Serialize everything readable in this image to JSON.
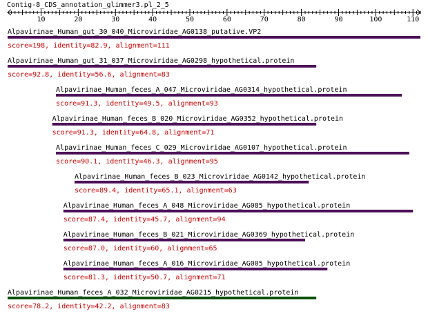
{
  "query": {
    "name": "Contig-8_CDS_annotation_glimmer3.pl_2_5",
    "axis_min": 1,
    "axis_max": 112,
    "ticks": [
      10,
      20,
      30,
      40,
      50,
      60,
      70,
      80,
      90,
      100,
      110
    ]
  },
  "colors": {
    "bar_purple": "#4b0f57",
    "bar_green": "#0a500a",
    "score_text": "#cc0000",
    "label_text": "#000000",
    "axis": "#000000"
  },
  "hits": [
    {
      "name": "Alpavirinae_Human_gut_30_040_Microviridae_AG0138_putative.VP2",
      "score": "score=198, identity=82.9, alignment=111",
      "start": 1,
      "end": 112,
      "color": "#4b0f57"
    },
    {
      "name": "Alpavirinae_Human_gut_31_037_Microviridae_AG0298_hypothetical.protein",
      "score": "score=92.8, identity=56.6, alignment=83",
      "start": 1,
      "end": 84,
      "color": "#4b0f57"
    },
    {
      "name": "Alpavirinae_Human_feces_A_047_Microviridae_AG0314_hypothetical.protein",
      "score": "score=91.3, identity=49.5, alignment=93",
      "start": 14,
      "end": 107,
      "color": "#4b0f57"
    },
    {
      "name": "Alpavirinae_Human_feces_B_020_Microviridae_AG0352_hypothetical.protein",
      "score": "score=91.3, identity=64.8, alignment=71",
      "start": 13,
      "end": 84,
      "color": "#4b0f57"
    },
    {
      "name": "Alpavirinae_Human_feces_C_029_Microviridae_AG0107_hypothetical.protein",
      "score": "score=90.1, identity=46.3, alignment=95",
      "start": 14,
      "end": 109,
      "color": "#4b0f57"
    },
    {
      "name": "Alpavirinae_Human_feces_B_023_Microviridae_AG0142_hypothetical.protein",
      "score": "score=89.4, identity=65.1, alignment=63",
      "start": 19,
      "end": 82,
      "color": "#4b0f57"
    },
    {
      "name": "Alpavirinae_Human_feces_A_048_Microviridae_AG085_hypothetical.protein",
      "score": "score=87.4, identity=45.7, alignment=94",
      "start": 16,
      "end": 110,
      "color": "#4b0f57"
    },
    {
      "name": "Alpavirinae_Human_feces_B_021_Microviridae_AG0369_hypothetical.protein",
      "score": "score=87.0, identity=60, alignment=65",
      "start": 16,
      "end": 81,
      "color": "#4b0f57"
    },
    {
      "name": "Alpavirinae_Human_feces_A_016_Microviridae_AG005_hypothetical.protein",
      "score": "score=81.3, identity=50.7, alignment=71",
      "start": 16,
      "end": 87,
      "color": "#4b0f57"
    },
    {
      "name": "Alpavirinae_Human_feces_A_032_Microviridae_AG0215_hypothetical.protein",
      "score": "score=78.2, identity=42.2, alignment=83",
      "start": 1,
      "end": 84,
      "color": "#0a500a"
    }
  ]
}
